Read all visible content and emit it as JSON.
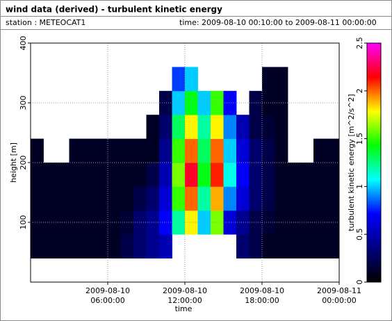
{
  "chart_data": {
    "type": "heatmap",
    "title": "wind data (derived) - turbulent kinetic energy",
    "station_label": "station : METEOCAT1",
    "time_label": "time: 2009-08-10 00:10:00 to 2009-08-11 00:00:00",
    "x_label": "time",
    "y_label": "height [m]",
    "colorbar_label": "turbulent kinetic energy [m^2/s^2]",
    "xlim": [
      "2009-08-10 00:00:00",
      "2009-08-11 00:00:00"
    ],
    "xticks": [
      "2009-08-10 06:00:00",
      "2009-08-10 12:00:00",
      "2009-08-10 18:00:00",
      "2009-08-11 00:00:00"
    ],
    "ylim": [
      0,
      400
    ],
    "yticks": [
      100,
      200,
      300,
      400
    ],
    "zlim": [
      0,
      2.5
    ],
    "zticks": [
      0,
      0.5,
      1,
      1.5,
      2,
      2.5
    ],
    "grid": true,
    "colormap": [
      "#000000",
      "#000080",
      "#0000ff",
      "#00ffff",
      "#00ff00",
      "#ffff00",
      "#ff0000",
      "#ff00ff"
    ],
    "x_bins": [
      "2009-08-10 00:00:00",
      "2009-08-10 01:00:00",
      "2009-08-10 02:00:00",
      "2009-08-10 03:00:00",
      "2009-08-10 04:00:00",
      "2009-08-10 05:00:00",
      "2009-08-10 06:00:00",
      "2009-08-10 07:00:00",
      "2009-08-10 08:00:00",
      "2009-08-10 09:00:00",
      "2009-08-10 10:00:00",
      "2009-08-10 11:00:00",
      "2009-08-10 12:00:00",
      "2009-08-10 13:00:00",
      "2009-08-10 14:00:00",
      "2009-08-10 15:00:00",
      "2009-08-10 16:00:00",
      "2009-08-10 17:00:00",
      "2009-08-10 18:00:00",
      "2009-08-10 19:00:00",
      "2009-08-10 20:00:00",
      "2009-08-10 21:00:00",
      "2009-08-10 22:00:00",
      "2009-08-10 23:00:00",
      "2009-08-11 00:00:00"
    ],
    "y_bins": [
      40,
      80,
      120,
      160,
      200,
      240,
      280,
      320,
      360
    ],
    "z": [
      [
        0.1,
        0.1,
        0.1,
        0.1,
        0.1,
        0.1,
        0.1,
        0.2,
        0.3,
        0.4,
        0.5,
        null,
        null,
        null,
        null,
        null,
        0.3,
        0.2,
        0.1,
        0.1,
        0.1,
        0.1,
        0.1,
        0.1
      ],
      [
        0.1,
        0.1,
        0.1,
        0.1,
        0.1,
        0.1,
        0.1,
        0.15,
        0.3,
        0.4,
        0.7,
        1.2,
        1.8,
        1.0,
        1.6,
        0.6,
        0.4,
        0.2,
        0.15,
        0.1,
        0.1,
        0.1,
        0.1,
        0.1
      ],
      [
        0.1,
        0.1,
        0.1,
        0.1,
        0.1,
        0.1,
        0.1,
        0.1,
        0.2,
        0.3,
        0.6,
        1.5,
        2.0,
        1.2,
        1.9,
        0.9,
        0.6,
        0.3,
        0.2,
        0.1,
        0.1,
        0.1,
        0.1,
        0.1
      ],
      [
        0.1,
        0.1,
        0.1,
        0.1,
        0.1,
        0.1,
        0.1,
        0.1,
        0.1,
        0.2,
        0.5,
        1.6,
        2.2,
        1.4,
        2.1,
        1.1,
        0.7,
        0.3,
        0.2,
        0.1,
        0.1,
        0.1,
        0.1,
        0.1
      ],
      [
        0.1,
        null,
        null,
        0.1,
        0.1,
        0.1,
        0.1,
        0.1,
        0.1,
        0.1,
        0.4,
        1.5,
        2.0,
        1.3,
        2.0,
        1.0,
        0.6,
        0.3,
        0.2,
        0.1,
        null,
        null,
        0.1,
        0.1
      ],
      [
        null,
        null,
        null,
        null,
        null,
        null,
        null,
        null,
        null,
        0.1,
        0.3,
        1.3,
        1.8,
        1.2,
        1.8,
        0.9,
        0.5,
        0.2,
        0.15,
        0.1,
        null,
        null,
        null,
        null
      ],
      [
        null,
        null,
        null,
        null,
        null,
        null,
        null,
        null,
        null,
        null,
        0.2,
        1.0,
        1.4,
        1.0,
        1.5,
        0.7,
        null,
        0.2,
        0.1,
        0.1,
        null,
        null,
        null,
        null
      ],
      [
        null,
        null,
        null,
        null,
        null,
        null,
        null,
        null,
        null,
        null,
        null,
        0.8,
        1.0,
        null,
        null,
        null,
        null,
        null,
        0.1,
        0.1,
        null,
        null,
        null,
        null
      ]
    ]
  }
}
